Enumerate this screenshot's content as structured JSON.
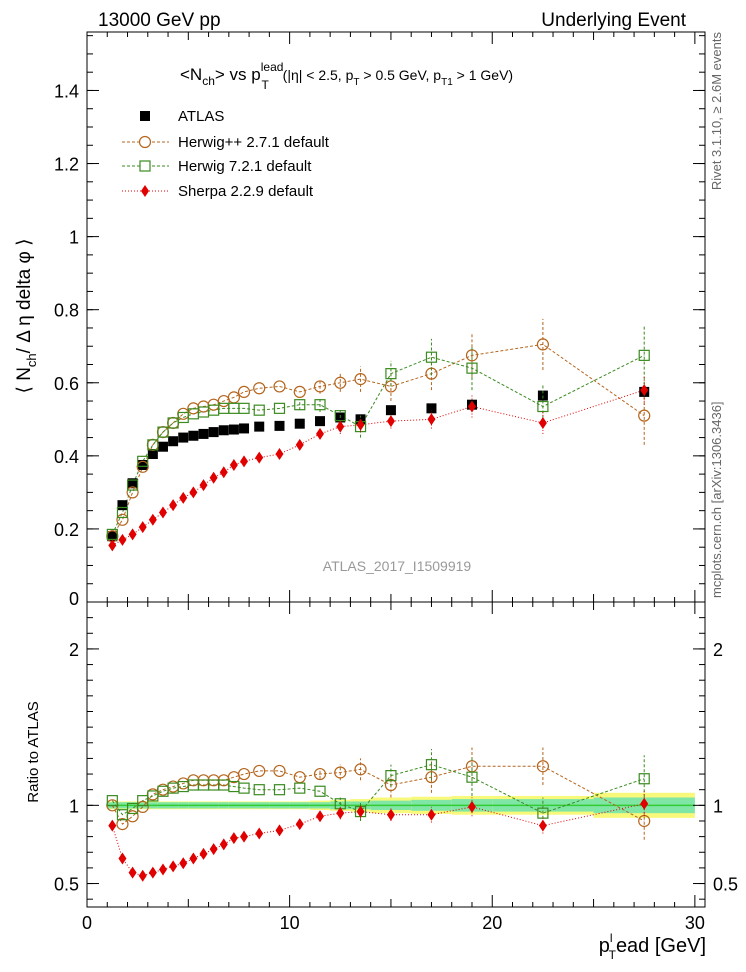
{
  "header": {
    "energy": "13000 GeV pp",
    "category": "Underlying Event"
  },
  "title": {
    "l1": "<N",
    "sub1": "ch",
    "l2": "> vs p",
    "sup1": "lead",
    "sub2": "T",
    "l3": " (|η| < 2.5, p",
    "sub3": "T",
    "l4": " > 0.5 GeV, p",
    "sub4": "T1",
    "l5": " > 1 GeV)"
  },
  "ylabel_main": {
    "a": "⟨ N",
    "sub": "ch",
    "b": "/ Δ η delta φ ⟩"
  },
  "ylabel_ratio": "Ratio to ATLAS",
  "xlabel": {
    "p": "p",
    "sup": "l",
    "sub": "T",
    "rest": "ead [GeV]"
  },
  "watermark": "ATLAS_2017_I1509919",
  "side_labels": {
    "rivet": "Rivet 3.1.10, ≥ 2.6M events",
    "mcplots": "mcplots.cern.ch [arXiv:1306.3436]"
  },
  "colors": {
    "atlas": "#000000",
    "herwigpp": "#b5651d",
    "herwig7": "#3a8a1f",
    "sherpa": "#e00000",
    "band_inner": "#7fe6a6",
    "band_outer": "#f8f87a",
    "ref_line": "#33cc33"
  },
  "chart_data": [
    {
      "type": "scatter",
      "panel": "main",
      "xlim": [
        0,
        30.5
      ],
      "ylim": [
        0,
        1.56
      ],
      "x_ticks": [
        0,
        10,
        20,
        30
      ],
      "y_ticks": [
        0.2,
        0.4,
        0.6,
        0.8,
        1,
        1.2,
        1.4
      ],
      "y_tick_labels": [
        "0.2",
        "0.4",
        "0.6",
        "0.8",
        "1",
        "1.2",
        "1.4"
      ],
      "y_zero_label": "0",
      "legend_position": "top-left",
      "series": [
        {
          "name": "ATLAS",
          "marker": "filled-square",
          "line": "none",
          "x": [
            1.25,
            1.75,
            2.25,
            2.75,
            3.25,
            3.75,
            4.25,
            4.75,
            5.25,
            5.75,
            6.25,
            6.75,
            7.25,
            7.75,
            8.5,
            9.5,
            10.5,
            11.5,
            12.5,
            13.5,
            15,
            17,
            19,
            22.5,
            27.5
          ],
          "y": [
            0.18,
            0.265,
            0.325,
            0.375,
            0.405,
            0.425,
            0.44,
            0.45,
            0.455,
            0.46,
            0.465,
            0.47,
            0.472,
            0.475,
            0.48,
            0.482,
            0.488,
            0.495,
            0.505,
            0.5,
            0.525,
            0.53,
            0.54,
            0.565,
            0.575
          ]
        },
        {
          "name": "Herwig++ 2.7.1 default",
          "marker": "open-circle",
          "line": "dashed",
          "x": [
            1.25,
            1.75,
            2.25,
            2.75,
            3.25,
            3.75,
            4.25,
            4.75,
            5.25,
            5.75,
            6.25,
            6.75,
            7.25,
            7.75,
            8.5,
            9.5,
            10.5,
            11.5,
            12.5,
            13.5,
            15,
            17,
            19,
            22.5,
            27.5
          ],
          "y": [
            0.18,
            0.225,
            0.3,
            0.37,
            0.43,
            0.465,
            0.49,
            0.515,
            0.53,
            0.535,
            0.54,
            0.55,
            0.56,
            0.575,
            0.585,
            0.59,
            0.575,
            0.59,
            0.6,
            0.61,
            0.59,
            0.625,
            0.675,
            0.705,
            0.51
          ],
          "err": [
            0,
            0,
            0,
            0,
            0,
            0,
            0,
            0,
            0,
            0,
            0,
            0,
            0,
            0,
            0,
            0,
            0,
            0.02,
            0.025,
            0.035,
            0.04,
            0.045,
            0.06,
            0.07,
            0.08
          ]
        },
        {
          "name": "Herwig 7.2.1 default",
          "marker": "open-square",
          "line": "dashed",
          "x": [
            1.25,
            1.75,
            2.25,
            2.75,
            3.25,
            3.75,
            4.25,
            4.75,
            5.25,
            5.75,
            6.25,
            6.75,
            7.25,
            7.75,
            8.5,
            9.5,
            10.5,
            11.5,
            12.5,
            13.5,
            15,
            17,
            19,
            22.5,
            27.5
          ],
          "y": [
            0.185,
            0.245,
            0.32,
            0.385,
            0.43,
            0.465,
            0.49,
            0.505,
            0.515,
            0.52,
            0.525,
            0.53,
            0.53,
            0.53,
            0.525,
            0.53,
            0.54,
            0.54,
            0.51,
            0.48,
            0.625,
            0.67,
            0.64,
            0.535,
            0.675
          ],
          "err": [
            0,
            0,
            0,
            0,
            0,
            0,
            0,
            0,
            0,
            0,
            0,
            0,
            0,
            0,
            0,
            0,
            0.015,
            0.02,
            0.02,
            0.03,
            0.035,
            0.05,
            0.06,
            0.06,
            0.08
          ]
        },
        {
          "name": "Sherpa 2.2.9 default",
          "marker": "filled-diamond",
          "line": "dotted",
          "x": [
            1.25,
            1.75,
            2.25,
            2.75,
            3.25,
            3.75,
            4.25,
            4.75,
            5.25,
            5.75,
            6.25,
            6.75,
            7.25,
            7.75,
            8.5,
            9.5,
            10.5,
            11.5,
            12.5,
            13.5,
            15,
            17,
            19,
            22.5,
            27.5
          ],
          "y": [
            0.155,
            0.17,
            0.185,
            0.205,
            0.225,
            0.245,
            0.265,
            0.285,
            0.3,
            0.32,
            0.34,
            0.355,
            0.375,
            0.385,
            0.395,
            0.405,
            0.43,
            0.46,
            0.48,
            0.485,
            0.495,
            0.5,
            0.535,
            0.49,
            0.58
          ],
          "err": [
            0,
            0,
            0,
            0,
            0,
            0,
            0,
            0,
            0,
            0,
            0,
            0,
            0,
            0,
            0,
            0,
            0.01,
            0.015,
            0.02,
            0.02,
            0.02,
            0.025,
            0.03,
            0.03,
            0.04
          ]
        }
      ]
    },
    {
      "type": "scatter",
      "panel": "ratio",
      "xlim": [
        0,
        30.5
      ],
      "ylim": [
        0.35,
        2.3
      ],
      "x_ticks": [
        0,
        10,
        20,
        30
      ],
      "x_tick_labels": [
        "0",
        "10",
        "20",
        "30"
      ],
      "y_ticks": [
        0.5,
        1,
        2
      ],
      "y_tick_labels": [
        "0.5",
        "1",
        "2"
      ],
      "band": {
        "x": [
          1,
          1.5,
          2,
          2.5,
          3,
          3.5,
          4,
          4.5,
          5,
          5.5,
          6,
          6.5,
          7,
          7.5,
          8,
          9,
          10,
          11,
          12,
          13,
          14,
          16,
          18,
          20,
          25,
          30
        ],
        "inner": [
          0.02,
          0.02,
          0.02,
          0.02,
          0.02,
          0.02,
          0.02,
          0.02,
          0.02,
          0.02,
          0.02,
          0.02,
          0.02,
          0.02,
          0.02,
          0.02,
          0.02,
          0.02,
          0.025,
          0.025,
          0.03,
          0.035,
          0.04,
          0.04,
          0.05
        ],
        "outer": [
          0.025,
          0.025,
          0.025,
          0.025,
          0.025,
          0.025,
          0.025,
          0.025,
          0.025,
          0.025,
          0.025,
          0.025,
          0.025,
          0.025,
          0.025,
          0.025,
          0.025,
          0.03,
          0.035,
          0.04,
          0.05,
          0.055,
          0.06,
          0.06,
          0.08
        ]
      },
      "series": [
        {
          "name": "Herwig++ 2.7.1 default",
          "marker": "open-circle",
          "line": "dashed",
          "x": [
            1.25,
            1.75,
            2.25,
            2.75,
            3.25,
            3.75,
            4.25,
            4.75,
            5.25,
            5.75,
            6.25,
            6.75,
            7.25,
            7.75,
            8.5,
            9.5,
            10.5,
            11.5,
            12.5,
            13.5,
            15,
            17,
            19,
            22.5,
            27.5
          ],
          "y": [
            1.0,
            0.88,
            0.93,
            0.99,
            1.07,
            1.1,
            1.12,
            1.14,
            1.16,
            1.16,
            1.16,
            1.16,
            1.18,
            1.2,
            1.22,
            1.22,
            1.18,
            1.2,
            1.21,
            1.23,
            1.13,
            1.18,
            1.25,
            1.25,
            0.9
          ],
          "err": [
            0,
            0,
            0,
            0,
            0,
            0,
            0,
            0,
            0,
            0,
            0,
            0,
            0,
            0,
            0,
            0,
            0,
            0.03,
            0.05,
            0.07,
            0.08,
            0.1,
            0.12,
            0.12,
            0.12
          ]
        },
        {
          "name": "Herwig 7.2.1 default",
          "marker": "open-square",
          "line": "dashed",
          "x": [
            1.25,
            1.75,
            2.25,
            2.75,
            3.25,
            3.75,
            4.25,
            4.75,
            5.25,
            5.75,
            6.25,
            6.75,
            7.25,
            7.75,
            8.5,
            9.5,
            10.5,
            11.5,
            12.5,
            13.5,
            15,
            17,
            19,
            22.5,
            27.5
          ],
          "y": [
            1.03,
            0.94,
            0.98,
            1.03,
            1.06,
            1.09,
            1.11,
            1.12,
            1.13,
            1.13,
            1.13,
            1.13,
            1.12,
            1.11,
            1.1,
            1.1,
            1.11,
            1.09,
            1.01,
            0.96,
            1.19,
            1.26,
            1.18,
            0.95,
            1.17
          ],
          "err": [
            0,
            0,
            0,
            0,
            0,
            0,
            0,
            0,
            0,
            0,
            0,
            0,
            0,
            0,
            0,
            0,
            0,
            0,
            0.04,
            0.06,
            0.07,
            0.1,
            0.12,
            0.1,
            0.15
          ]
        },
        {
          "name": "Sherpa 2.2.9 default",
          "marker": "filled-diamond",
          "line": "dotted",
          "x": [
            1.25,
            1.75,
            2.25,
            2.75,
            3.25,
            3.75,
            4.25,
            4.75,
            5.25,
            5.75,
            6.25,
            6.75,
            7.25,
            7.75,
            8.5,
            9.5,
            10.5,
            11.5,
            12.5,
            13.5,
            15,
            17,
            19,
            22.5,
            27.5
          ],
          "y": [
            0.87,
            0.66,
            0.57,
            0.55,
            0.57,
            0.59,
            0.61,
            0.63,
            0.66,
            0.69,
            0.72,
            0.75,
            0.79,
            0.8,
            0.82,
            0.84,
            0.88,
            0.93,
            0.95,
            0.96,
            0.94,
            0.94,
            0.99,
            0.87,
            1.01
          ],
          "err": [
            0,
            0,
            0,
            0,
            0,
            0,
            0,
            0,
            0,
            0,
            0,
            0,
            0,
            0,
            0,
            0,
            0.02,
            0.03,
            0.04,
            0.04,
            0.04,
            0.05,
            0.06,
            0.05,
            0.08
          ]
        }
      ]
    }
  ]
}
